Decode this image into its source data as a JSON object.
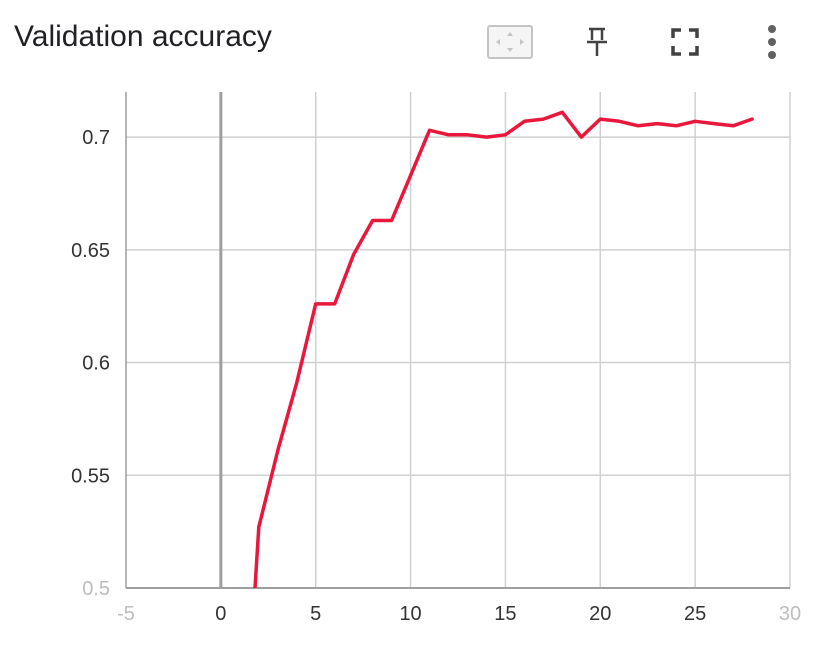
{
  "card": {
    "title": "Validation accuracy"
  },
  "toolbar": {
    "icons": [
      "fit-domain-icon",
      "pin-icon",
      "fullscreen-icon",
      "more-vert-icon"
    ]
  },
  "colors": {
    "series": "#e8173b",
    "grid": "#d0d0d0",
    "zero_line": "#9e9e9e",
    "axis": "#9e9e9e"
  },
  "chart_data": {
    "type": "line",
    "title": "Validation accuracy",
    "xlabel": "",
    "ylabel": "",
    "xlim": [
      -5,
      30
    ],
    "ylim": [
      0.5,
      0.72
    ],
    "grid": true,
    "x_ticks": [
      {
        "value": -5,
        "label": "-5",
        "faded": true
      },
      {
        "value": 0,
        "label": "0",
        "faded": false
      },
      {
        "value": 5,
        "label": "5",
        "faded": false
      },
      {
        "value": 10,
        "label": "10",
        "faded": false
      },
      {
        "value": 15,
        "label": "15",
        "faded": false
      },
      {
        "value": 20,
        "label": "20",
        "faded": false
      },
      {
        "value": 25,
        "label": "25",
        "faded": false
      },
      {
        "value": 30,
        "label": "30",
        "faded": true
      }
    ],
    "y_ticks": [
      {
        "value": 0.5,
        "label": "0.5",
        "faded": true
      },
      {
        "value": 0.55,
        "label": "0.55",
        "faded": false
      },
      {
        "value": 0.6,
        "label": "0.6",
        "faded": false
      },
      {
        "value": 0.65,
        "label": "0.65",
        "faded": false
      },
      {
        "value": 0.7,
        "label": "0.7",
        "faded": false
      }
    ],
    "series": [
      {
        "x": [
          1.8,
          2,
          3,
          4,
          5,
          6,
          7,
          8,
          9,
          10,
          11,
          12,
          13,
          14,
          15,
          16,
          17,
          18,
          19,
          20,
          21,
          22,
          23,
          24,
          25,
          26,
          27,
          28
        ],
        "y": [
          0.5,
          0.527,
          0.561,
          0.591,
          0.626,
          0.626,
          0.648,
          0.663,
          0.663,
          0.683,
          0.703,
          0.701,
          0.701,
          0.7,
          0.701,
          0.707,
          0.708,
          0.711,
          0.7,
          0.708,
          0.707,
          0.705,
          0.706,
          0.705,
          0.707,
          0.706,
          0.705,
          0.708
        ]
      }
    ]
  }
}
